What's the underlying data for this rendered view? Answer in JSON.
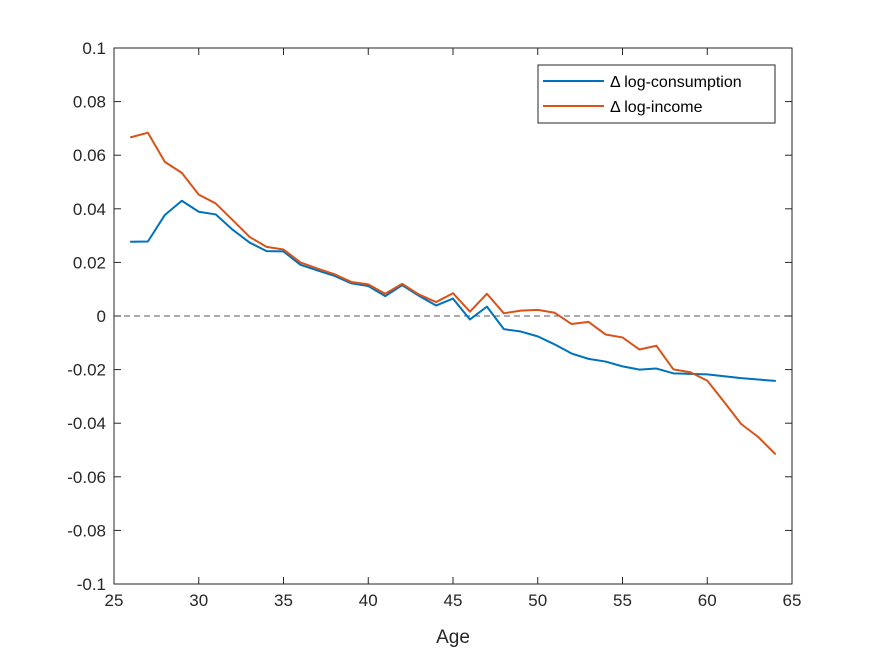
{
  "chart_data": {
    "type": "line",
    "xlabel": "Age",
    "ylabel": "",
    "xlim": [
      25,
      65
    ],
    "ylim": [
      -0.1,
      0.1
    ],
    "xticks": [
      25,
      30,
      35,
      40,
      45,
      50,
      55,
      60,
      65
    ],
    "xtick_labels": [
      "25",
      "30",
      "35",
      "40",
      "45",
      "50",
      "55",
      "60",
      "65"
    ],
    "yticks": [
      -0.1,
      -0.08,
      -0.06,
      -0.04,
      -0.02,
      0,
      0.02,
      0.04,
      0.06,
      0.08,
      0.1
    ],
    "ytick_labels": [
      "-0.1",
      "-0.08",
      "-0.06",
      "-0.04",
      "-0.02",
      "0",
      "0.02",
      "0.04",
      "0.06",
      "0.08",
      "0.1"
    ],
    "grid": false,
    "legend_position": "top-right",
    "reference_line": {
      "y": 0,
      "style": "dashed",
      "color": "#5a5a5a"
    },
    "x": [
      26,
      27,
      28,
      29,
      30,
      31,
      32,
      33,
      34,
      35,
      36,
      37,
      38,
      39,
      40,
      41,
      42,
      43,
      44,
      45,
      46,
      47,
      48,
      49,
      50,
      51,
      52,
      53,
      54,
      55,
      56,
      57,
      58,
      59,
      60,
      61,
      62,
      63,
      64
    ],
    "series": [
      {
        "name": "Δ log-consumption",
        "color": "#0072bd",
        "values": [
          0.0277,
          0.0278,
          0.0377,
          0.043,
          0.0389,
          0.0379,
          0.0322,
          0.0274,
          0.0242,
          0.0241,
          0.0191,
          0.017,
          0.015,
          0.0122,
          0.0112,
          0.0074,
          0.0115,
          0.0075,
          0.0039,
          0.0065,
          -0.0013,
          0.0035,
          -0.0049,
          -0.0058,
          -0.0076,
          -0.0106,
          -0.014,
          -0.016,
          -0.017,
          -0.0188,
          -0.02,
          -0.0196,
          -0.0214,
          -0.0216,
          -0.0218,
          -0.0225,
          -0.0232,
          -0.0237,
          -0.0242
        ]
      },
      {
        "name": "Δ log-income",
        "color": "#d95319",
        "values": [
          0.0667,
          0.0684,
          0.0575,
          0.0534,
          0.0453,
          0.042,
          0.0358,
          0.0295,
          0.0258,
          0.0248,
          0.02,
          0.0177,
          0.0156,
          0.0127,
          0.0118,
          0.0083,
          0.012,
          0.008,
          0.0052,
          0.0085,
          0.0016,
          0.0083,
          0.001,
          0.002,
          0.0023,
          0.0012,
          -0.003,
          -0.0022,
          -0.0069,
          -0.008,
          -0.0125,
          -0.0111,
          -0.0199,
          -0.021,
          -0.0241,
          -0.0321,
          -0.0403,
          -0.0451,
          -0.0514
        ]
      }
    ]
  }
}
